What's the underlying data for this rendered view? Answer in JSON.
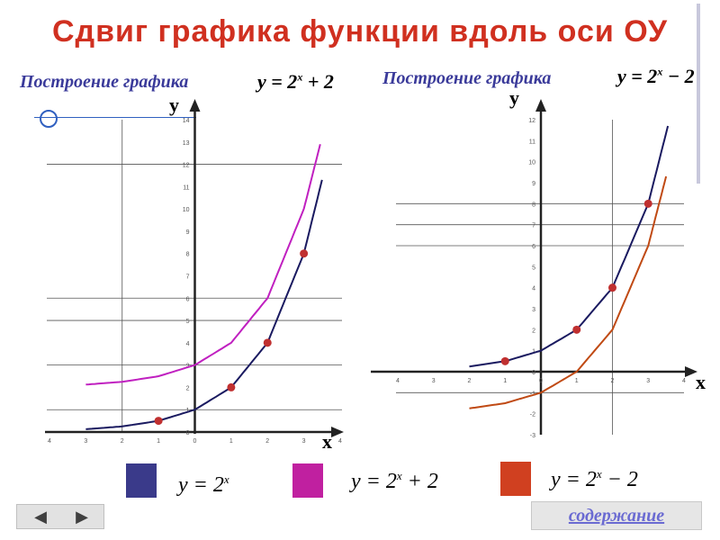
{
  "title": "Сдвиг  графика  функции  вдоль  оси ОУ",
  "colors": {
    "title": "#d03020",
    "subtitle": "#3a3a9a",
    "base": "#1a1a60",
    "plus": "#c020c0",
    "minus": "#c04a14",
    "point": "#c03030"
  },
  "left": {
    "subtitle": "Построение графика",
    "formula": {
      "lhs": "y = 2",
      "exp": "x",
      "rhs": " + 2"
    }
  },
  "right": {
    "subtitle": "Построение графика",
    "formula": {
      "lhs": "y = 2",
      "exp": "x",
      "rhs": " − 2"
    }
  },
  "axes": {
    "x_letter": "x",
    "y_letter": "y"
  },
  "legend": [
    {
      "lhs": "y = 2",
      "exp": "x",
      "rhs": "",
      "color": "#3a3a8a"
    },
    {
      "lhs": "y = 2",
      "exp": "x",
      "rhs": " + 2",
      "color": "#c020a0"
    },
    {
      "lhs": "y = 2",
      "exp": "x",
      "rhs": " − 2",
      "color": "#d04020"
    }
  ],
  "nav": {
    "prev": "◀",
    "next": "▶"
  },
  "content_link": "содержание",
  "chart_data": [
    {
      "type": "line",
      "title": "Построение графика y = 2^x + 2",
      "xlabel": "x",
      "ylabel": "y",
      "xlim": [
        -4,
        4
      ],
      "ylim": [
        0,
        14
      ],
      "x_ticks": [
        -4,
        -3,
        -2,
        -1,
        0,
        1,
        2,
        3,
        4
      ],
      "y_ticks": [
        0,
        1,
        2,
        3,
        4,
        5,
        6,
        7,
        8,
        9,
        10,
        11,
        12,
        13,
        14
      ],
      "x_tick_labels": [
        "4",
        "3",
        "2",
        "1",
        "0",
        "1",
        "2",
        "3",
        "4"
      ],
      "y_tick_labels": [
        "0",
        "1",
        "2",
        "3",
        "4",
        "5",
        "6",
        "7",
        "8",
        "9",
        "10",
        "11",
        "12",
        "13",
        "14"
      ],
      "guide_lines_y": [
        1,
        3,
        5,
        6,
        12
      ],
      "guide_lines_x": [
        -2,
        0
      ],
      "series": [
        {
          "name": "y = 2^x",
          "color": "#1a1a60",
          "x": [
            -3,
            -2,
            -1,
            0,
            1,
            2,
            3,
            3.5
          ],
          "values": [
            0.125,
            0.25,
            0.5,
            1,
            2,
            4,
            8,
            11.3
          ]
        },
        {
          "name": "y = 2^x + 2",
          "color": "#c020c0",
          "x": [
            -3,
            -2,
            -1,
            0,
            1,
            2,
            3,
            3.45
          ],
          "values": [
            2.125,
            2.25,
            2.5,
            3,
            4,
            6,
            10,
            12.9
          ]
        }
      ],
      "points": {
        "x": [
          -1,
          1,
          2,
          3
        ],
        "values": [
          0.5,
          2,
          4,
          8
        ]
      }
    },
    {
      "type": "line",
      "title": "Построение графика y = 2^x − 2",
      "xlabel": "x",
      "ylabel": "y",
      "xlim": [
        -4,
        4
      ],
      "ylim": [
        -3,
        12
      ],
      "x_ticks": [
        -4,
        -3,
        -2,
        -1,
        0,
        1,
        2,
        3,
        4
      ],
      "y_ticks": [
        -3,
        -2,
        -1,
        0,
        1,
        2,
        3,
        4,
        5,
        6,
        7,
        8,
        9,
        10,
        11,
        12
      ],
      "x_tick_labels": [
        "4",
        "3",
        "2",
        "1",
        "0",
        "1",
        "2",
        "3",
        "4"
      ],
      "y_tick_labels": [
        "-3",
        "-2",
        "-1",
        "0",
        "1",
        "2",
        "3",
        "4",
        "5",
        "6",
        "7",
        "8",
        "9",
        "10",
        "11",
        "12"
      ],
      "guide_lines_y": [
        -1,
        6,
        7,
        8
      ],
      "guide_lines_x": [
        0,
        2
      ],
      "series": [
        {
          "name": "y = 2^x",
          "color": "#1a1a60",
          "x": [
            -2,
            -1,
            0,
            1,
            2,
            3,
            3.55
          ],
          "values": [
            0.25,
            0.5,
            1,
            2,
            4,
            8,
            11.7
          ]
        },
        {
          "name": "y = 2^x − 2",
          "color": "#c04a14",
          "x": [
            -2,
            -1,
            0,
            1,
            2,
            3,
            3.5
          ],
          "values": [
            -1.75,
            -1.5,
            -1,
            0,
            2,
            6,
            9.3
          ]
        }
      ],
      "points": {
        "x": [
          -1,
          1,
          2,
          3
        ],
        "values": [
          0.5,
          2,
          4,
          8
        ]
      }
    }
  ]
}
